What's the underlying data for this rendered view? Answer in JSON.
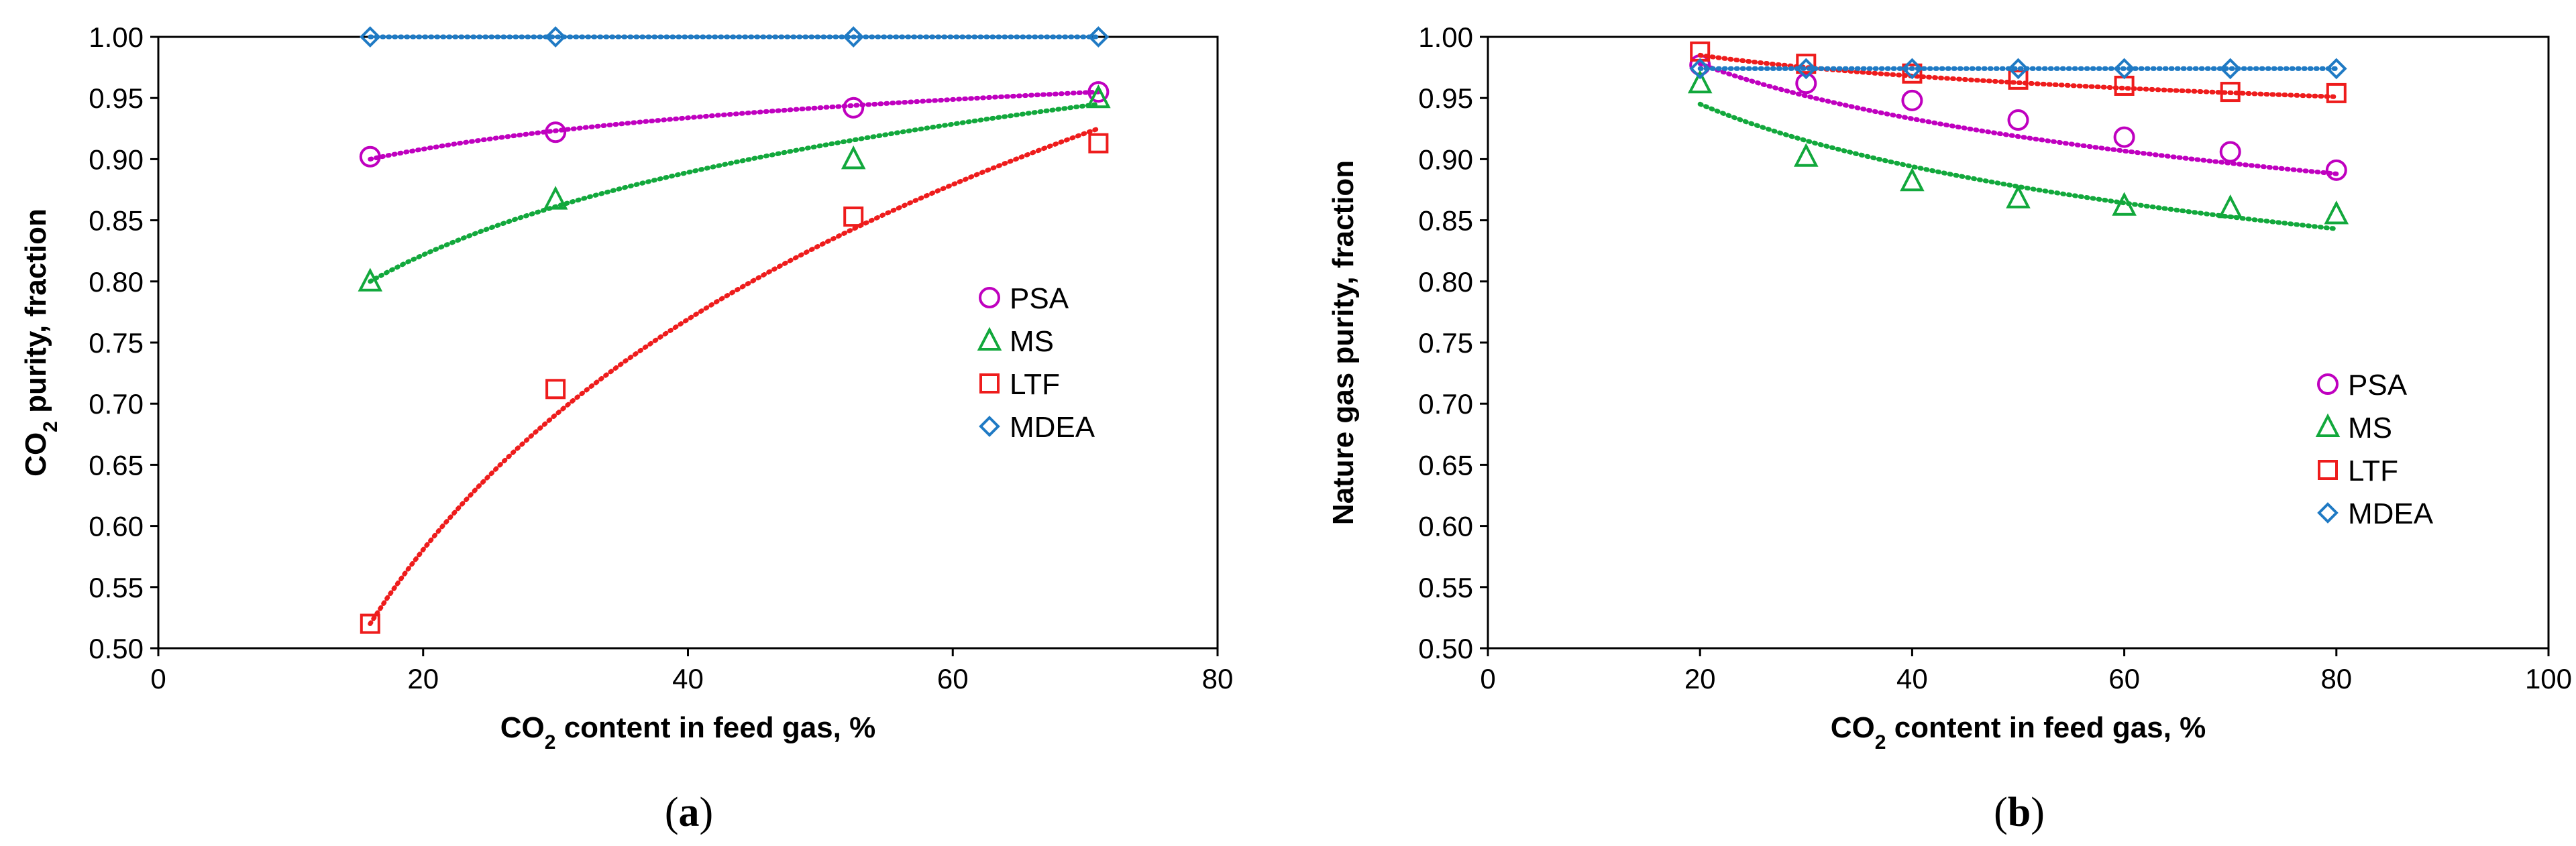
{
  "chart_data": [
    {
      "type": "scatter",
      "panel_label": "a",
      "xlabel": "CO2 content in feed gas, %",
      "ylabel": "CO2 purity, fraction",
      "xlabel_parts": [
        "CO",
        "2",
        " content in feed gas, %"
      ],
      "ylabel_parts": [
        "CO",
        "2",
        " purity, fraction"
      ],
      "xlim": [
        0,
        80
      ],
      "ylim": [
        0.5,
        1.0
      ],
      "x_ticks": [
        0,
        20,
        40,
        60,
        80
      ],
      "y_ticks": [
        0.5,
        0.55,
        0.6,
        0.65,
        0.7,
        0.75,
        0.8,
        0.85,
        0.9,
        0.95,
        1.0
      ],
      "x_tick_labels": [
        "0",
        "20",
        "40",
        "60",
        "80"
      ],
      "y_tick_labels": [
        "0.50",
        "0.55",
        "0.60",
        "0.65",
        "0.70",
        "0.75",
        "0.80",
        "0.85",
        "0.90",
        "0.95",
        "1.00"
      ],
      "grid": false,
      "legend_position": "right",
      "series": [
        {
          "name": "PSA",
          "marker": "circle",
          "color": "#bf00bf",
          "x": [
            16,
            30,
            52.5,
            71
          ],
          "y": [
            0.902,
            0.922,
            0.942,
            0.955
          ],
          "trend": [
            0.9,
            0.955
          ]
        },
        {
          "name": "MS",
          "marker": "triangle",
          "color": "#12a83c",
          "x": [
            16,
            30,
            52.5,
            71
          ],
          "y": [
            0.8,
            0.867,
            0.9,
            0.95
          ],
          "trend": [
            0.8,
            0.945
          ]
        },
        {
          "name": "LTF",
          "marker": "square",
          "color": "#ee1c1c",
          "x": [
            16,
            30,
            52.5,
            71
          ],
          "y": [
            0.52,
            0.712,
            0.853,
            0.913
          ],
          "trend": [
            0.52,
            0.925
          ]
        },
        {
          "name": "MDEA",
          "marker": "diamond",
          "color": "#1f7ac4",
          "x": [
            16,
            30,
            52.5,
            71
          ],
          "y": [
            1.0,
            1.0,
            1.0,
            1.0
          ],
          "trend": [
            1.0,
            1.0
          ]
        }
      ]
    },
    {
      "type": "scatter",
      "panel_label": "b",
      "xlabel": "CO2 content in feed gas, %",
      "ylabel": "Nature gas purity, fraction",
      "xlabel_parts": [
        "CO",
        "2",
        " content in feed gas, %"
      ],
      "ylabel_parts": [
        "Nature gas purity, fraction"
      ],
      "xlim": [
        0,
        100
      ],
      "ylim": [
        0.5,
        1.0
      ],
      "x_ticks": [
        0,
        20,
        40,
        60,
        80,
        100
      ],
      "y_ticks": [
        0.5,
        0.55,
        0.6,
        0.65,
        0.7,
        0.75,
        0.8,
        0.85,
        0.9,
        0.95,
        1.0
      ],
      "x_tick_labels": [
        "0",
        "20",
        "40",
        "60",
        "80",
        "100"
      ],
      "y_tick_labels": [
        "0.50",
        "0.55",
        "0.60",
        "0.65",
        "0.70",
        "0.75",
        "0.80",
        "0.85",
        "0.90",
        "0.95",
        "1.00"
      ],
      "grid": false,
      "legend_position": "right",
      "series": [
        {
          "name": "PSA",
          "marker": "circle",
          "color": "#bf00bf",
          "x": [
            20,
            30,
            40,
            50,
            60,
            70,
            80
          ],
          "y": [
            0.977,
            0.962,
            0.948,
            0.932,
            0.918,
            0.906,
            0.891
          ],
          "trend": [
            0.978,
            0.888
          ]
        },
        {
          "name": "MS",
          "marker": "triangle",
          "color": "#12a83c",
          "x": [
            20,
            30,
            40,
            50,
            60,
            70,
            80
          ],
          "y": [
            0.962,
            0.902,
            0.882,
            0.868,
            0.862,
            0.86,
            0.855
          ],
          "trend": [
            0.945,
            0.843
          ]
        },
        {
          "name": "LTF",
          "marker": "square",
          "color": "#ee1c1c",
          "x": [
            20,
            30,
            40,
            50,
            60,
            70,
            80
          ],
          "y": [
            0.988,
            0.978,
            0.97,
            0.965,
            0.96,
            0.955,
            0.954
          ],
          "trend": [
            0.985,
            0.951
          ]
        },
        {
          "name": "MDEA",
          "marker": "diamond",
          "color": "#1f7ac4",
          "x": [
            20,
            30,
            40,
            50,
            60,
            70,
            80
          ],
          "y": [
            0.974,
            0.974,
            0.974,
            0.974,
            0.974,
            0.974,
            0.974
          ],
          "trend": [
            0.974,
            0.974
          ]
        }
      ]
    }
  ]
}
